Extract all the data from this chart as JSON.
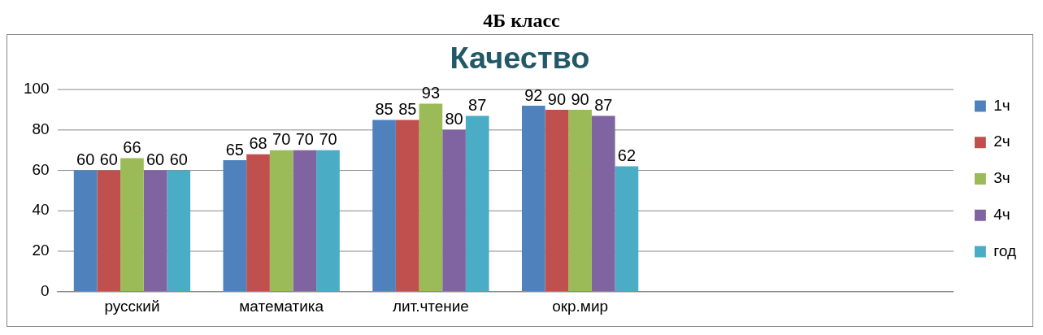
{
  "chart_data": {
    "type": "bar",
    "title": "4Б класс",
    "subtitle": "Качество",
    "categories": [
      "русский",
      "математика",
      "лит.чтение",
      "окр.мир",
      null,
      null
    ],
    "series": [
      {
        "name": "1ч",
        "color": "#4f81bd",
        "values": [
          60,
          65,
          85,
          92,
          null,
          null
        ]
      },
      {
        "name": "2ч",
        "color": "#c0504d",
        "values": [
          60,
          68,
          85,
          90,
          null,
          null
        ]
      },
      {
        "name": "3ч",
        "color": "#9bbb59",
        "values": [
          66,
          70,
          93,
          90,
          null,
          null
        ]
      },
      {
        "name": "4ч",
        "color": "#8064a2",
        "values": [
          60,
          70,
          80,
          87,
          null,
          null
        ]
      },
      {
        "name": "год",
        "color": "#4bacc6",
        "values": [
          60,
          70,
          87,
          62,
          null,
          null
        ]
      }
    ],
    "ylim": [
      0,
      100
    ],
    "yticks": [
      0,
      20,
      40,
      60,
      80,
      100
    ],
    "grid": "y",
    "legend": "right",
    "data_labels": true
  }
}
